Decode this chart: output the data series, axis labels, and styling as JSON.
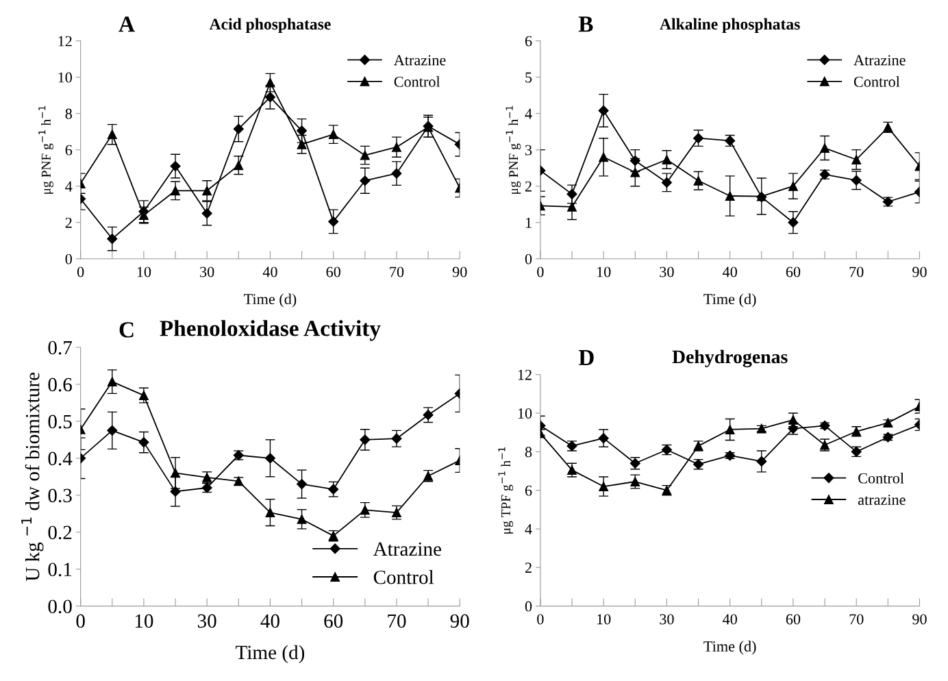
{
  "chart_data": [
    {
      "type": "line",
      "title": "Acid phosphatase",
      "annotations": [
        "A"
      ],
      "xlabel": "Time (d)",
      "ylabel": "μg PNF g$^{−1}$ h$^{−1}$",
      "categories": [
        "0",
        null,
        "10",
        null,
        "30",
        null,
        "40",
        null,
        "60",
        null,
        "70",
        null,
        "90"
      ],
      "ylim": [
        0,
        12
      ],
      "yticks": [
        0,
        2,
        4,
        6,
        8,
        10,
        12
      ],
      "grid": false,
      "legend": "top right",
      "series": [
        {
          "name": "Atrazine",
          "color": "#000000",
          "marker": "diamond",
          "values": [
            3.3,
            1.1,
            2.6,
            5.1,
            2.5,
            7.15,
            8.9,
            7.05,
            2.05,
            4.3,
            4.7,
            7.3,
            6.3
          ],
          "errors": [
            0.6,
            0.65,
            0.6,
            0.65,
            0.65,
            0.7,
            0.65,
            0.65,
            0.65,
            0.7,
            0.65,
            0.6,
            0.65
          ]
        },
        {
          "name": "Control",
          "color": "#000000",
          "marker": "triangle",
          "values": [
            4.15,
            6.85,
            2.4,
            3.75,
            3.75,
            5.15,
            9.7,
            6.3,
            6.85,
            5.7,
            6.15,
            7.25,
            3.9
          ],
          "errors": [
            0.55,
            0.55,
            0.45,
            0.5,
            0.55,
            0.5,
            0.5,
            0.5,
            0.5,
            0.5,
            0.55,
            0.55,
            0.5
          ]
        }
      ]
    },
    {
      "type": "line",
      "title": "Alkaline phosphatas",
      "annotations": [
        "B"
      ],
      "xlabel": "Time (d)",
      "ylabel": "μg PNF g$^{−1}$ h$^{−1}$",
      "categories": [
        "0",
        null,
        "10",
        null,
        "30",
        null,
        "40",
        null,
        "60",
        null,
        "70",
        null,
        "90"
      ],
      "ylim": [
        0,
        6
      ],
      "yticks": [
        0,
        1,
        2,
        3,
        4,
        5,
        6
      ],
      "grid": false,
      "legend": "top right",
      "series": [
        {
          "name": "Atrazine",
          "color": "#000000",
          "marker": "diamond",
          "values": [
            2.43,
            1.78,
            4.08,
            2.7,
            2.1,
            3.32,
            3.25,
            1.7,
            1.0,
            2.32,
            2.16,
            1.57,
            1.84
          ],
          "errors": [
            0.57,
            0.25,
            0.45,
            0.3,
            0.25,
            0.22,
            0.15,
            null,
            0.3,
            0.12,
            0.25,
            0.12,
            0.3
          ]
        },
        {
          "name": "Control",
          "color": "#000000",
          "marker": "triangle",
          "values": [
            1.46,
            1.43,
            2.8,
            2.38,
            2.73,
            2.15,
            1.73,
            1.72,
            2.0,
            3.05,
            2.73,
            3.62,
            2.55
          ],
          "errors": [
            0.25,
            0.35,
            0.52,
            0.38,
            0.25,
            0.25,
            0.55,
            0.5,
            0.35,
            0.33,
            0.27,
            0.14,
            0.37
          ]
        }
      ]
    },
    {
      "type": "line",
      "title": "Phenoloxidase Activity",
      "annotations": [
        "C"
      ],
      "xlabel": "Time (d)",
      "ylabel": "U kg $^{−1}$ dw of biomixture",
      "categories": [
        "0",
        null,
        "10",
        null,
        "30",
        null,
        "40",
        null,
        "60",
        null,
        "70",
        null,
        "90"
      ],
      "ylim": [
        0,
        0.7
      ],
      "yticks": [
        {
          "value": 0,
          "label": "0.0"
        },
        0.1,
        0.2,
        0.3,
        0.4,
        0.5,
        0.6,
        0.7
      ],
      "grid": false,
      "legend": "lower right",
      "series": [
        {
          "name": "Atrazine",
          "color": "#000000",
          "marker": "diamond",
          "values": [
            0.4,
            0.475,
            0.443,
            0.31,
            0.32,
            0.408,
            0.4,
            0.33,
            0.316,
            0.45,
            0.453,
            0.517,
            0.575
          ],
          "errors": [
            0.055,
            0.05,
            0.028,
            0.04,
            0.012,
            0.012,
            0.05,
            0.038,
            0.02,
            0.028,
            0.022,
            0.02,
            0.05
          ]
        },
        {
          "name": "Control",
          "color": "#000000",
          "marker": "triangle",
          "values": [
            0.478,
            0.607,
            0.57,
            0.36,
            0.348,
            0.338,
            0.253,
            0.235,
            0.19,
            0.26,
            0.253,
            0.352,
            0.394
          ],
          "errors": [
            0.055,
            0.032,
            0.02,
            0.042,
            0.015,
            0.01,
            0.036,
            0.026,
            0.014,
            0.02,
            0.018,
            0.015,
            0.032
          ]
        }
      ]
    },
    {
      "type": "line",
      "title": "Dehydrogenas",
      "annotations": [
        "D"
      ],
      "xlabel": "Time (d)",
      "ylabel": "μg TPF g$^{−1}$ h$^{−1}$",
      "categories": [
        "0",
        null,
        "10",
        null,
        "30",
        null,
        "40",
        null,
        "60",
        null,
        "70",
        null,
        "90"
      ],
      "ylim": [
        0,
        12
      ],
      "yticks": [
        0,
        2,
        4,
        6,
        8,
        10,
        12
      ],
      "grid": false,
      "legend": "center right",
      "series": [
        {
          "name": "Control",
          "color": "#000000",
          "marker": "diamond",
          "values": [
            9.35,
            8.3,
            8.7,
            7.4,
            8.1,
            7.35,
            7.8,
            7.5,
            9.2,
            9.35,
            8.0,
            8.75,
            9.4
          ],
          "errors": [
            0.5,
            0.25,
            0.45,
            0.3,
            0.25,
            0.25,
            0.15,
            0.55,
            0.3,
            0.15,
            0.25,
            0.15,
            0.3
          ]
        },
        {
          "name": "atrazine",
          "color": "#000000",
          "marker": "triangle",
          "values": [
            8.95,
            7.05,
            6.2,
            6.45,
            6.0,
            8.3,
            9.15,
            9.2,
            9.65,
            8.35,
            9.05,
            9.5,
            10.35
          ],
          "errors": [
            0.2,
            0.35,
            0.5,
            0.35,
            0.25,
            0.25,
            0.55,
            0.15,
            0.35,
            0.3,
            0.25,
            0.15,
            0.35
          ]
        }
      ]
    }
  ]
}
